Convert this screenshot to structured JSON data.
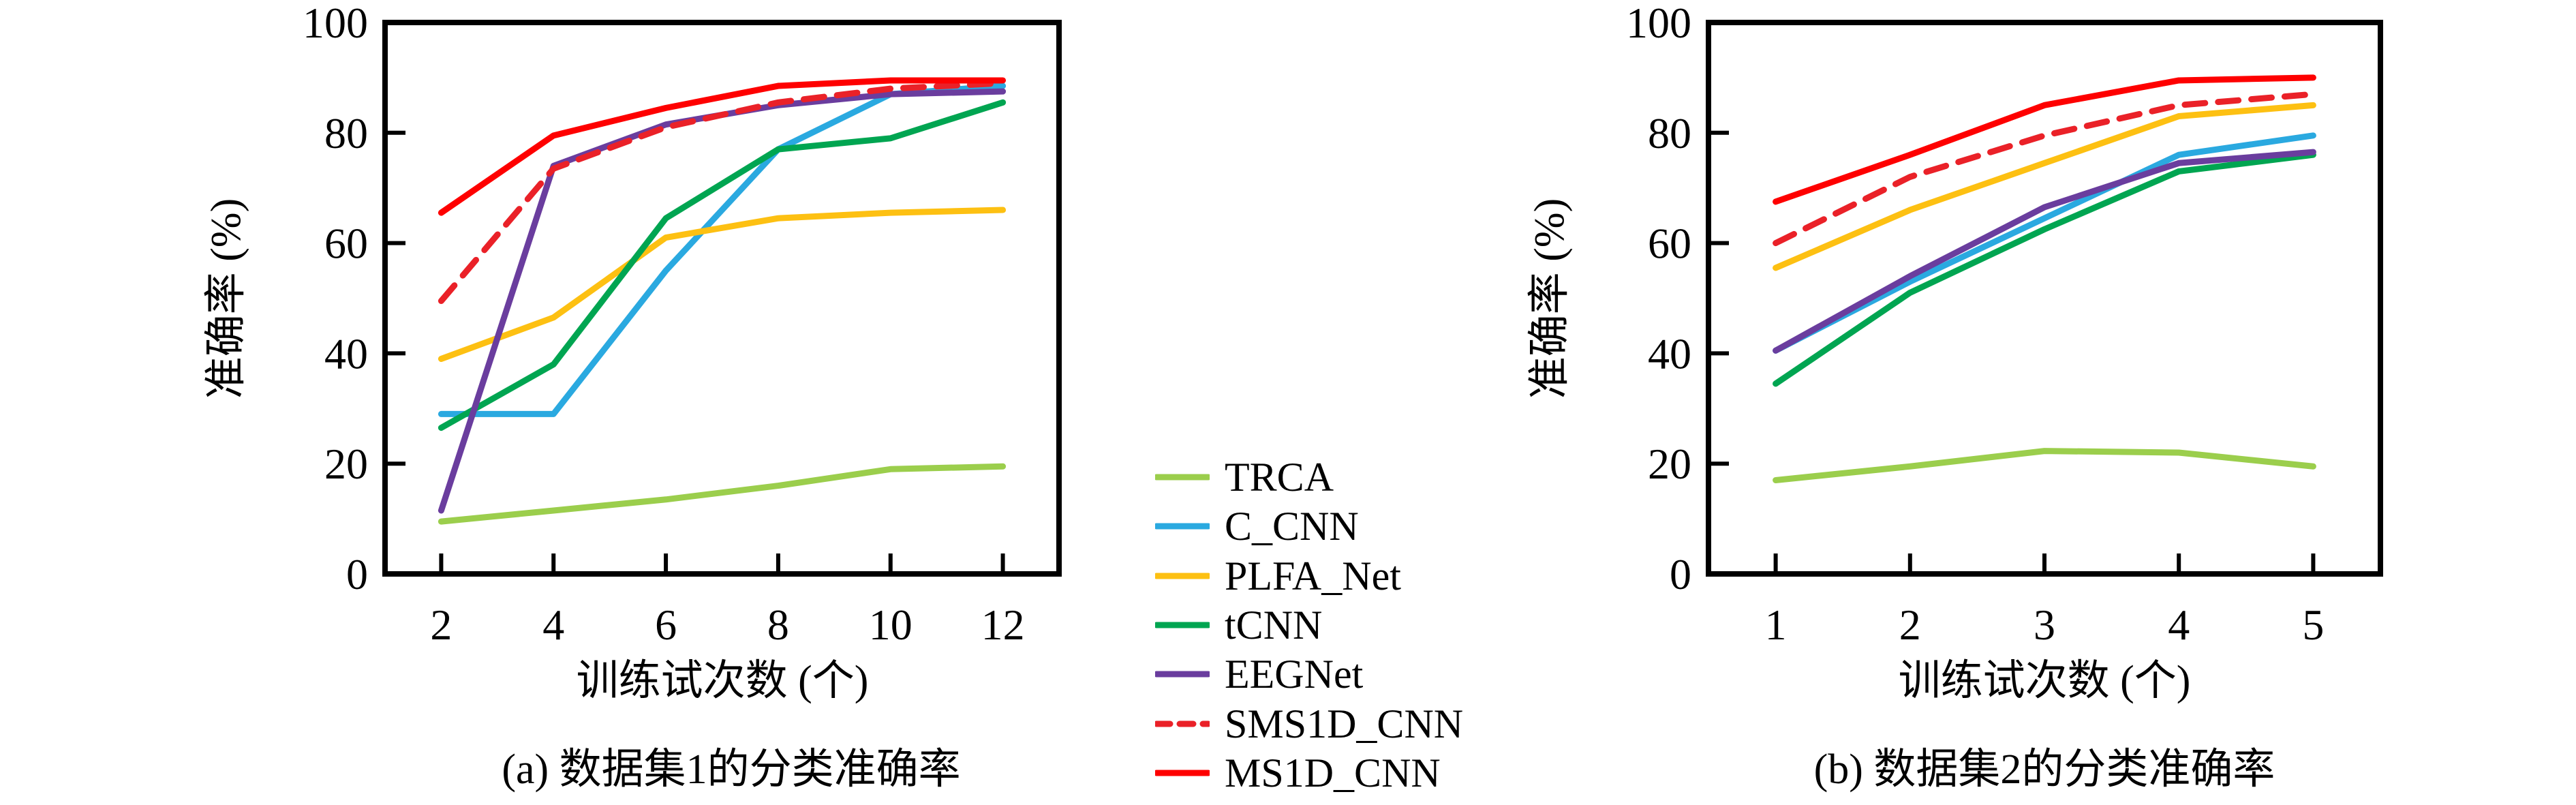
{
  "axis": {
    "y_label": "准确率 (%)",
    "x_label": "训练试次数 (个)"
  },
  "legend": {
    "position": "center-between-charts",
    "items": [
      {
        "label": "TRCA",
        "color": "#9bce4c",
        "dash": false
      },
      {
        "label": "C_CNN",
        "color": "#2aa9e0",
        "dash": false
      },
      {
        "label": "PLFA_Net",
        "color": "#fdc012",
        "dash": false
      },
      {
        "label": "tCNN",
        "color": "#00a551",
        "dash": false
      },
      {
        "label": "EEGNet",
        "color": "#6a3d9e",
        "dash": false
      },
      {
        "label": "SMS1D_CNN",
        "color": "#ea2128",
        "dash": true
      },
      {
        "label": "MS1D_CNN",
        "color": "#fe0000",
        "dash": false
      }
    ]
  },
  "chart_data": [
    {
      "id": "a",
      "type": "line",
      "title": "(a) 数据集1的分类准确率",
      "xlabel": "训练试次数 (个)",
      "ylabel": "准确率 (%)",
      "x": [
        2,
        4,
        6,
        8,
        10,
        12
      ],
      "x_ticks": [
        2,
        4,
        6,
        8,
        10,
        12
      ],
      "y_ticks": [
        0,
        20,
        40,
        60,
        80,
        100
      ],
      "xlim": [
        1,
        13
      ],
      "ylim": [
        0,
        100
      ],
      "grid": false,
      "legend_position": "outside-right-shared",
      "series": [
        {
          "name": "TRCA",
          "color": "#9bce4c",
          "dash": false,
          "values": [
            9.5,
            11.5,
            13.5,
            16,
            19,
            19.5
          ]
        },
        {
          "name": "C_CNN",
          "color": "#2aa9e0",
          "dash": false,
          "values": [
            29,
            29,
            55,
            77,
            87,
            88.5
          ]
        },
        {
          "name": "PLFA_Net",
          "color": "#fdc012",
          "dash": false,
          "values": [
            39,
            46.5,
            61,
            64.5,
            65.5,
            66
          ]
        },
        {
          "name": "tCNN",
          "color": "#00a551",
          "dash": false,
          "values": [
            26.5,
            38,
            64.5,
            77,
            79,
            85.5
          ]
        },
        {
          "name": "EEGNet",
          "color": "#6a3d9e",
          "dash": false,
          "values": [
            11.5,
            74,
            81.5,
            85,
            87,
            87.5
          ]
        },
        {
          "name": "SMS1D_CNN",
          "color": "#ea2128",
          "dash": true,
          "values": [
            49.5,
            73.5,
            81,
            85.5,
            88,
            89
          ]
        },
        {
          "name": "MS1D_CNN",
          "color": "#fe0000",
          "dash": false,
          "values": [
            65.5,
            79.5,
            84.5,
            88.5,
            89.5,
            89.5
          ]
        }
      ]
    },
    {
      "id": "b",
      "type": "line",
      "title": "(b) 数据集2的分类准确率",
      "xlabel": "训练试次数 (个)",
      "ylabel": "准确率 (%)",
      "x": [
        1,
        2,
        3,
        4,
        5
      ],
      "x_ticks": [
        1,
        2,
        3,
        4,
        5
      ],
      "y_ticks": [
        0,
        20,
        40,
        60,
        80,
        100
      ],
      "xlim": [
        0.5,
        5.5
      ],
      "ylim": [
        0,
        100
      ],
      "grid": false,
      "legend_position": "outside-left-shared",
      "series": [
        {
          "name": "TRCA",
          "color": "#9bce4c",
          "dash": false,
          "values": [
            17,
            19.5,
            22.3,
            22,
            19.5
          ]
        },
        {
          "name": "C_CNN",
          "color": "#2aa9e0",
          "dash": false,
          "values": [
            40.5,
            53,
            64.5,
            76,
            79.5
          ]
        },
        {
          "name": "PLFA_Net",
          "color": "#fdc012",
          "dash": false,
          "values": [
            55.5,
            66,
            74.5,
            83,
            85
          ]
        },
        {
          "name": "tCNN",
          "color": "#00a551",
          "dash": false,
          "values": [
            34.5,
            51,
            62.5,
            73,
            76
          ]
        },
        {
          "name": "EEGNet",
          "color": "#6a3d9e",
          "dash": false,
          "values": [
            40.5,
            54,
            66.5,
            74.5,
            76.5
          ]
        },
        {
          "name": "SMS1D_CNN",
          "color": "#ea2128",
          "dash": true,
          "values": [
            60,
            72,
            79.5,
            85,
            87
          ]
        },
        {
          "name": "MS1D_CNN",
          "color": "#fe0000",
          "dash": false,
          "values": [
            67.5,
            76,
            85,
            89.5,
            90
          ]
        }
      ]
    }
  ]
}
